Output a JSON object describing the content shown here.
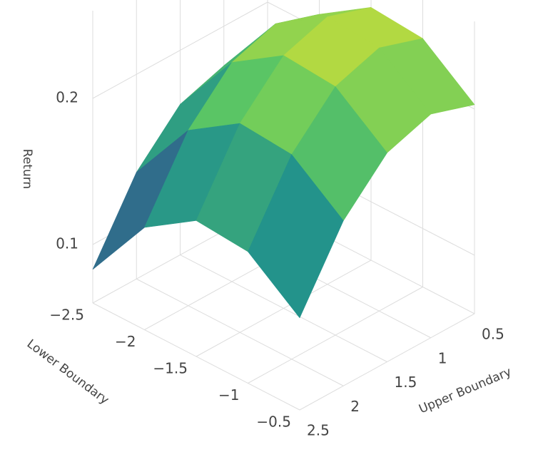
{
  "chart_data": {
    "type": "surface",
    "colorscale": "viridis",
    "x_title": "Lower Boundary",
    "y_title": "Upper Boundary",
    "z_title": "Return",
    "x": [
      -2.5,
      -2,
      -1.5,
      -1,
      -0.5
    ],
    "y": [
      0.5,
      1,
      1.5,
      2,
      2.5
    ],
    "z": [
      [
        0.163,
        0.173,
        0.163,
        0.133,
        0.083
      ],
      [
        0.21,
        0.22,
        0.21,
        0.18,
        0.13
      ],
      [
        0.233,
        0.243,
        0.233,
        0.203,
        0.153
      ],
      [
        0.23,
        0.24,
        0.23,
        0.2,
        0.15
      ],
      [
        0.203,
        0.213,
        0.203,
        0.173,
        0.123
      ]
    ],
    "xlim": [
      -2.5,
      -0.5
    ],
    "ylim": [
      0.5,
      2.5
    ],
    "zlim": [
      0.06,
      0.26
    ],
    "xticks": [
      {
        "value": -2.5,
        "label": "−2.5"
      },
      {
        "value": -2,
        "label": "−2"
      },
      {
        "value": -1.5,
        "label": "−1.5"
      },
      {
        "value": -1,
        "label": "−1"
      },
      {
        "value": -0.5,
        "label": "−0.5"
      }
    ],
    "yticks": [
      0.5,
      1,
      1.5,
      2,
      2.5
    ],
    "zticks": [
      0.1,
      0.2
    ],
    "grid": true
  }
}
